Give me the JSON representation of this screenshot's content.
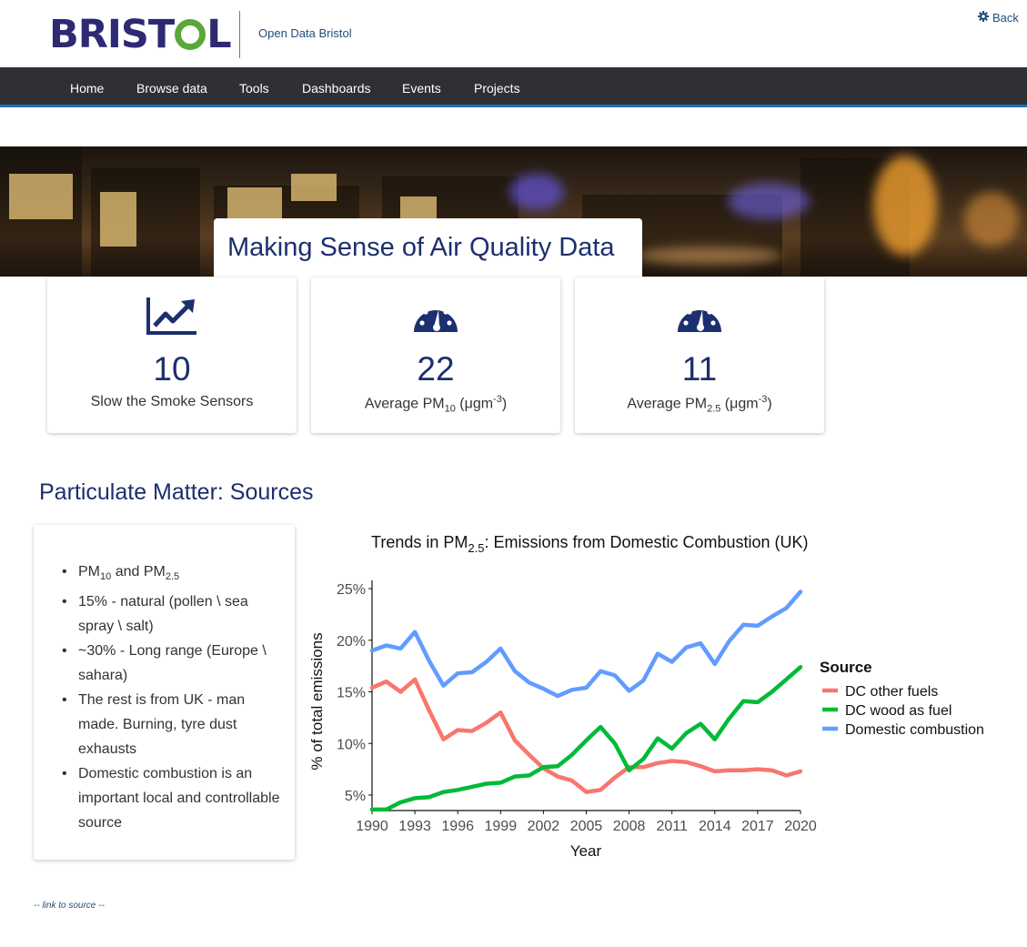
{
  "header": {
    "logo_text_left": "BRIST",
    "logo_text_right": "L",
    "site_name": "Open Data Bristol",
    "back_link": "Back"
  },
  "nav": {
    "items": [
      "Home",
      "Browse data",
      "Tools",
      "Dashboards",
      "Events",
      "Projects"
    ]
  },
  "hero": {
    "title": "Making Sense of Air Quality Data"
  },
  "stats": [
    {
      "icon": "chart-line-icon",
      "value": "10",
      "label": "Slow the Smoke Sensors"
    },
    {
      "icon": "gauge-icon",
      "value": "22",
      "label_prefix": "Average PM",
      "label_sub": "10",
      "label_unit": " (μgm",
      "label_sup": "-3",
      "label_close": ")"
    },
    {
      "icon": "gauge-icon",
      "value": "11",
      "label_prefix": "Average PM",
      "label_sub": "2.5",
      "label_unit": " (μgm",
      "label_sup": "-3",
      "label_close": ")"
    }
  ],
  "section": {
    "title": "Particulate Matter: Sources"
  },
  "info": {
    "items": [
      {
        "a": "PM",
        "a_sub": "10",
        "b": " and PM",
        "b_sub": "2.5"
      },
      {
        "text": "15% - natural (pollen \\ sea spray \\ salt)"
      },
      {
        "text": "~30% - Long range (Europe \\ sahara)"
      },
      {
        "text": "The rest is from UK - man made. Burning, tyre dust exhausts"
      },
      {
        "text": "Domestic combustion is an important local and controllable source"
      }
    ]
  },
  "chart_data": {
    "type": "line",
    "title_prefix": "Trends in PM",
    "title_sub": "2.5",
    "title_suffix": ": Emissions from Domestic Combustion (UK)",
    "xlabel": "Year",
    "ylabel": "% of total emissions",
    "legend_title": "Source",
    "legend_position": "right",
    "xlim": [
      1990,
      2020
    ],
    "ylim": [
      3.5,
      25.8
    ],
    "x_ticks": [
      1990,
      1993,
      1996,
      1999,
      2002,
      2005,
      2008,
      2011,
      2014,
      2017,
      2020
    ],
    "y_ticks": [
      5,
      10,
      15,
      20,
      25
    ],
    "y_tick_labels": [
      "5%",
      "10%",
      "15%",
      "20%",
      "25%"
    ],
    "x": [
      1990,
      1991,
      1992,
      1993,
      1994,
      1995,
      1996,
      1997,
      1998,
      1999,
      2000,
      2001,
      2002,
      2003,
      2004,
      2005,
      2006,
      2007,
      2008,
      2009,
      2010,
      2011,
      2012,
      2013,
      2014,
      2015,
      2016,
      2017,
      2018,
      2019,
      2020
    ],
    "series": [
      {
        "name": "DC other fuels",
        "color": "#f8766d",
        "values": [
          15.4,
          16.0,
          15.0,
          16.2,
          13.2,
          10.4,
          11.3,
          11.2,
          12.0,
          13.0,
          10.3,
          8.9,
          7.6,
          6.8,
          6.4,
          5.3,
          5.5,
          6.7,
          7.7,
          7.7,
          8.1,
          8.3,
          8.2,
          7.8,
          7.3,
          7.4,
          7.4,
          7.5,
          7.4,
          6.9,
          7.3
        ]
      },
      {
        "name": "DC wood as fuel",
        "color": "#00ba38",
        "values": [
          3.6,
          3.6,
          4.3,
          4.7,
          4.8,
          5.3,
          5.5,
          5.8,
          6.1,
          6.2,
          6.8,
          6.9,
          7.7,
          7.8,
          8.9,
          10.3,
          11.6,
          10.0,
          7.4,
          8.5,
          10.5,
          9.5,
          11.0,
          11.9,
          10.4,
          12.4,
          14.1,
          14.0,
          15.0,
          16.2,
          17.4
        ]
      },
      {
        "name": "Domestic combustion",
        "color": "#619cff",
        "values": [
          19.0,
          19.5,
          19.2,
          20.8,
          18.0,
          15.6,
          16.8,
          16.9,
          17.9,
          19.2,
          17.0,
          15.9,
          15.3,
          14.6,
          15.2,
          15.4,
          17.0,
          16.6,
          15.1,
          16.1,
          18.7,
          17.9,
          19.3,
          19.7,
          17.7,
          19.9,
          21.5,
          21.4,
          22.3,
          23.1,
          24.7
        ]
      }
    ]
  },
  "footer": {
    "source_link": "-- link to source --"
  }
}
